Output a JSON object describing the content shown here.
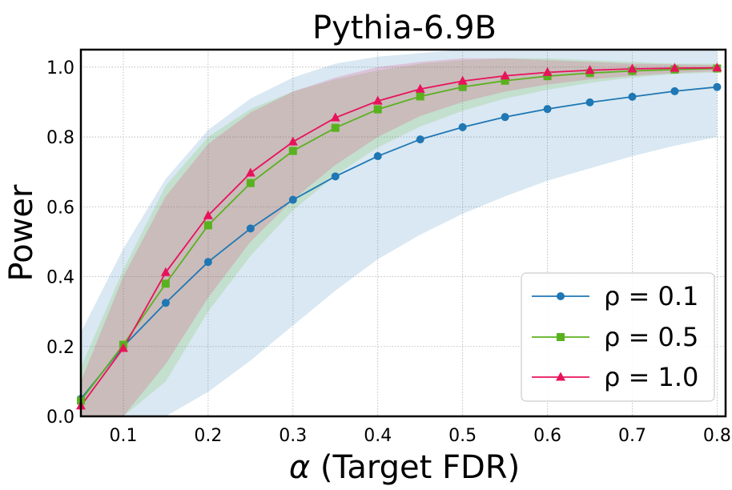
{
  "chart_data": {
    "type": "line",
    "title": "Pythia-6.9B",
    "xlabel_symbol": "α",
    "xlabel_rest": " (Target FDR)",
    "ylabel": "Power",
    "xlim": [
      0.05,
      0.81
    ],
    "ylim": [
      0.0,
      1.05
    ],
    "xticks": [
      0.1,
      0.2,
      0.3,
      0.4,
      0.5,
      0.6,
      0.7,
      0.8
    ],
    "xtick_labels": [
      "0.1",
      "0.2",
      "0.3",
      "0.4",
      "0.5",
      "0.6",
      "0.7",
      "0.8"
    ],
    "yticks": [
      0.0,
      0.2,
      0.4,
      0.6,
      0.8,
      1.0
    ],
    "ytick_labels": [
      "0.0",
      "0.2",
      "0.4",
      "0.6",
      "0.8",
      "1.0"
    ],
    "grid": true,
    "legend_position": "bottom-right",
    "x": [
      0.05,
      0.1,
      0.15,
      0.2,
      0.25,
      0.3,
      0.35,
      0.4,
      0.45,
      0.5,
      0.55,
      0.6,
      0.65,
      0.7,
      0.75,
      0.8
    ],
    "series": [
      {
        "name": "ρ = 0.1",
        "color": "#1f77b4",
        "marker": "circle",
        "values": [
          0.05,
          0.2,
          0.325,
          0.442,
          0.538,
          0.62,
          0.687,
          0.745,
          0.793,
          0.828,
          0.857,
          0.88,
          0.899,
          0.915,
          0.931,
          0.943
        ],
        "lower": [
          0.0,
          0.0,
          0.0,
          0.07,
          0.16,
          0.26,
          0.36,
          0.45,
          0.52,
          0.58,
          0.63,
          0.675,
          0.71,
          0.745,
          0.775,
          0.8
        ],
        "upper": [
          0.24,
          0.48,
          0.68,
          0.82,
          0.91,
          0.97,
          1.01,
          1.03,
          1.04,
          1.05,
          1.05,
          1.05,
          1.05,
          1.05,
          1.05,
          1.05
        ]
      },
      {
        "name": "ρ = 0.5",
        "color": "#5ab11f",
        "marker": "square",
        "values": [
          0.045,
          0.205,
          0.38,
          0.547,
          0.668,
          0.76,
          0.826,
          0.879,
          0.916,
          0.943,
          0.961,
          0.974,
          0.983,
          0.989,
          0.993,
          0.996
        ],
        "lower": [
          0.0,
          0.0,
          0.1,
          0.3,
          0.46,
          0.59,
          0.69,
          0.77,
          0.83,
          0.875,
          0.91,
          0.935,
          0.955,
          0.97,
          0.98,
          0.985
        ],
        "upper": [
          0.14,
          0.42,
          0.66,
          0.8,
          0.88,
          0.93,
          0.965,
          0.99,
          1.01,
          1.02,
          1.025,
          1.025,
          1.02,
          1.015,
          1.01,
          1.01
        ]
      },
      {
        "name": "ρ = 1.0",
        "color": "#e8125c",
        "marker": "triangle",
        "values": [
          0.03,
          0.195,
          0.412,
          0.575,
          0.697,
          0.786,
          0.855,
          0.903,
          0.937,
          0.96,
          0.975,
          0.985,
          0.991,
          0.995,
          0.997,
          0.998
        ],
        "lower": [
          0.0,
          0.0,
          0.15,
          0.34,
          0.5,
          0.62,
          0.72,
          0.8,
          0.86,
          0.9,
          0.93,
          0.95,
          0.965,
          0.975,
          0.983,
          0.988
        ],
        "upper": [
          0.1,
          0.4,
          0.63,
          0.78,
          0.87,
          0.93,
          0.97,
          1.0,
          1.015,
          1.025,
          1.025,
          1.02,
          1.015,
          1.01,
          1.008,
          1.006
        ]
      }
    ]
  }
}
